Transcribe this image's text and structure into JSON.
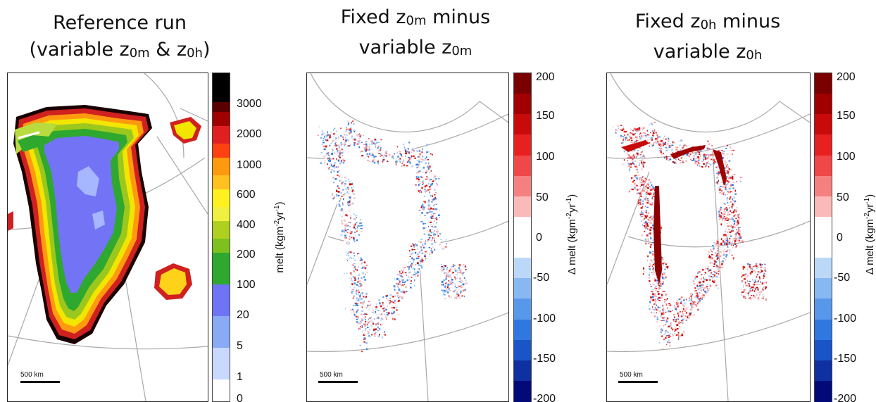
{
  "panels": [
    {
      "title_main": "Reference run",
      "title_sub_parts": [
        "(variable z",
        "0m",
        " & z",
        "0h",
        ")"
      ],
      "colorbar": {
        "label_parts": [
          "melt (kgm",
          "-2",
          "yr",
          "-1",
          ")"
        ],
        "ticks": [
          "3000",
          "2000",
          "1000",
          "600",
          "400",
          "200",
          "100",
          "20",
          "5",
          "1",
          "0"
        ],
        "colors": [
          "#000000",
          "#8b0000",
          "#e01010",
          "#ff7f00",
          "#ffd21a",
          "#ffff40",
          "#a8d020",
          "#2ea82e",
          "#7373f5",
          "#8aa8f5",
          "#c8d8ff",
          "#ffffff"
        ]
      },
      "scale_label": "500 km"
    },
    {
      "title_line1_parts": [
        "Fixed z",
        "0m",
        " minus"
      ],
      "title_line2_parts": [
        "variable z",
        "0m"
      ],
      "colorbar": {
        "label_parts": [
          "Δ melt (kgm",
          "-2",
          "yr",
          "-1",
          ")"
        ],
        "ticks": [
          "200",
          "150",
          "100",
          "50",
          "0",
          "-50",
          "-100",
          "-150",
          "-200"
        ],
        "colors": [
          "#7a0000",
          "#a00000",
          "#c80a0a",
          "#e82020",
          "#f04848",
          "#f58080",
          "#fbbaba",
          "#ffffff",
          "#ffffff",
          "#bcd8f8",
          "#88b8f2",
          "#5898ea",
          "#2f78e0",
          "#1a55c8",
          "#0e30a0",
          "#020a78"
        ]
      },
      "scale_label": "500 km"
    },
    {
      "title_line1_parts": [
        "Fixed z",
        "0h",
        " minus"
      ],
      "title_line2_parts": [
        "variable z",
        "0h"
      ],
      "colorbar": {
        "label_parts": [
          "Δ melt (kgm",
          "-2",
          "yr",
          "-1",
          ")"
        ],
        "ticks": [
          "200",
          "150",
          "100",
          "50",
          "0",
          "-50",
          "-100",
          "-150",
          "-200"
        ],
        "colors": [
          "#7a0000",
          "#a00000",
          "#c80a0a",
          "#e82020",
          "#f04848",
          "#f58080",
          "#fbbaba",
          "#ffffff",
          "#ffffff",
          "#bcd8f8",
          "#88b8f2",
          "#5898ea",
          "#2f78e0",
          "#1a55c8",
          "#0e30a0",
          "#020a78"
        ]
      },
      "scale_label": "500 km"
    }
  ]
}
